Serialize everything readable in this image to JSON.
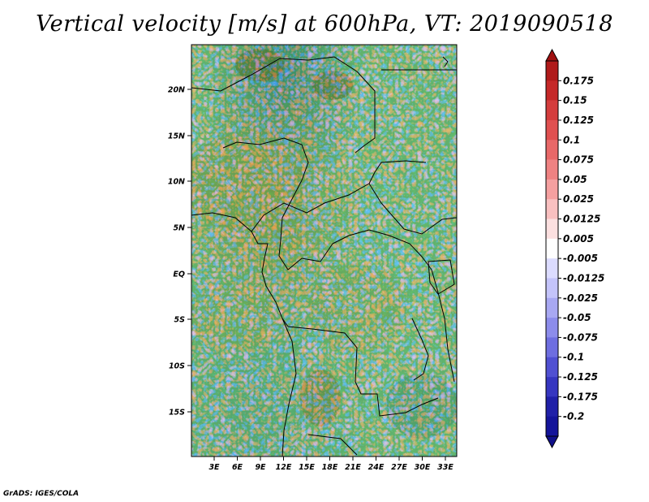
{
  "title": "Vertical velocity [m/s] at 600hPa, VT: 2019090518",
  "credit": "GrADS: IGES/COLA",
  "map": {
    "lat_labels": [
      "20N",
      "15N",
      "10N",
      "5N",
      "EQ",
      "5S",
      "10S",
      "15S"
    ],
    "lon_labels": [
      "3E",
      "6E",
      "9E",
      "12E",
      "15E",
      "18E",
      "21E",
      "24E",
      "27E",
      "30E",
      "33E"
    ]
  },
  "colorbar": {
    "labels": [
      "0.175",
      "0.15",
      "0.125",
      "0.1",
      "0.075",
      "0.05",
      "0.025",
      "0.0125",
      "0.005",
      "-0.005",
      "-0.0125",
      "-0.025",
      "-0.05",
      "-0.075",
      "-0.1",
      "-0.125",
      "-0.175",
      "-0.2"
    ],
    "colors": [
      "#b01a1a",
      "#c52828",
      "#d43d3d",
      "#e05050",
      "#e86868",
      "#ef8282",
      "#f5a0a0",
      "#f9c0c0",
      "#fce0e0",
      "#ffffff",
      "#dcdcff",
      "#c4c4fa",
      "#a8a8f2",
      "#8c8ceb",
      "#6e6ee0",
      "#5050d2",
      "#3636c0",
      "#2020a8",
      "#14149a"
    ],
    "top_color": "#a01010",
    "bottom_color": "#10108a"
  }
}
